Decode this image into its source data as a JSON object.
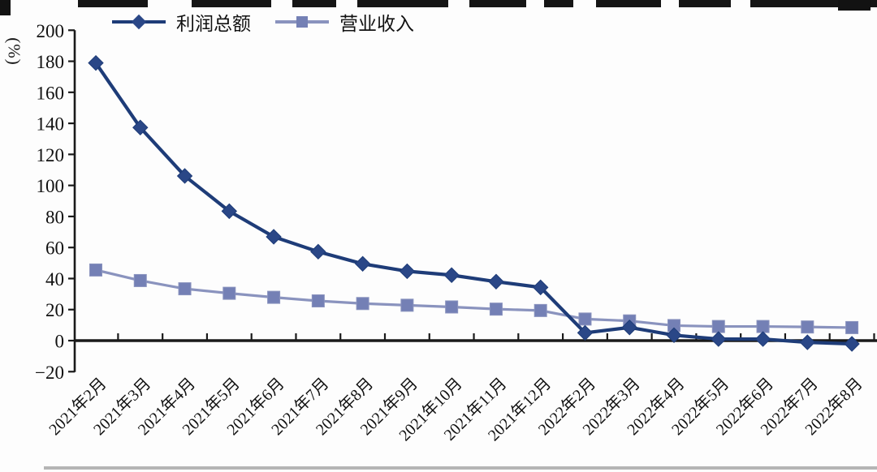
{
  "figure": {
    "y_axis_unit": "(%)"
  },
  "colors": {
    "profit_line": "#1e3c78",
    "profit_fill": "#2a4787",
    "revenue_line": "#8a93be",
    "revenue_fill": "#7480b5",
    "axis": "#1a1a1a"
  },
  "chart_data": {
    "type": "line",
    "title": "",
    "xlabel": "",
    "ylabel": "(%)",
    "ylim": [
      -20,
      200
    ],
    "yticks": [
      200,
      180,
      160,
      140,
      120,
      100,
      80,
      60,
      40,
      20,
      0,
      -20
    ],
    "grid": false,
    "legend_position": "top",
    "categories": [
      "2021年2月",
      "2021年3月",
      "2021年4月",
      "2021年5月",
      "2021年6月",
      "2021年7月",
      "2021年8月",
      "2021年9月",
      "2021年10月",
      "2021年11月",
      "2021年12月",
      "2022年2月",
      "2022年3月",
      "2022年4月",
      "2022年5月",
      "2022年6月",
      "2022年7月",
      "2022年8月"
    ],
    "series": [
      {
        "name": "利润总额",
        "marker": "diamond",
        "values": [
          178.9,
          137.3,
          106.1,
          83.4,
          66.9,
          57.3,
          49.5,
          44.7,
          42.2,
          38.0,
          34.3,
          5.0,
          8.5,
          3.5,
          1.0,
          1.0,
          -1.1,
          -2.1
        ]
      },
      {
        "name": "营业收入",
        "marker": "square",
        "values": [
          45.5,
          38.7,
          33.4,
          30.5,
          27.9,
          25.6,
          23.9,
          22.8,
          21.7,
          20.3,
          19.4,
          13.9,
          12.7,
          9.7,
          9.1,
          9.1,
          8.8,
          8.4
        ]
      }
    ]
  }
}
